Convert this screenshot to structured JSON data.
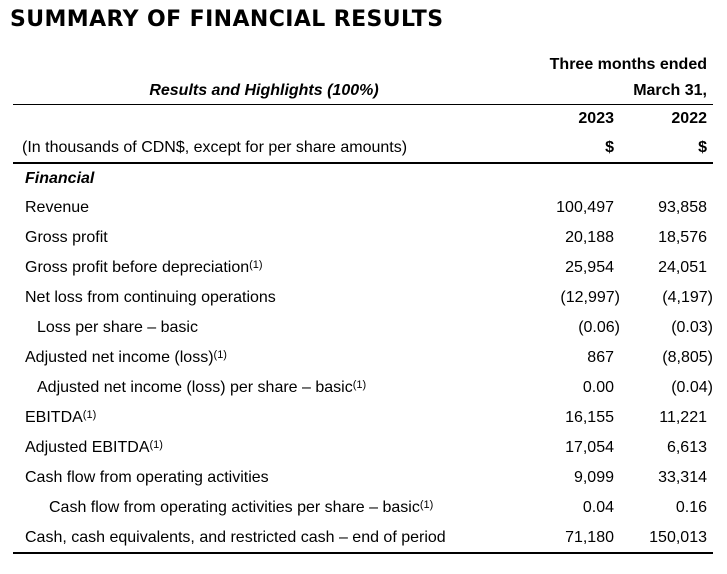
{
  "title": "SUMMARY OF FINANCIAL RESULTS",
  "header": {
    "period_line1": "Three months ended",
    "period_line2": "March 31,",
    "left_title": "Results and Highlights (100%)",
    "col_2023": "2023",
    "col_2022": "2022",
    "units_note": "(In thousands of CDN$, except for per share amounts)",
    "currency_symbol_2023": "$",
    "currency_symbol_2022": "$"
  },
  "table": {
    "rows": [
      {
        "type": "section",
        "label": "Financial",
        "indent": 0,
        "v2023": "",
        "v2022": ""
      },
      {
        "type": "data",
        "label": "Revenue",
        "indent": 0,
        "v2023": "100,497",
        "v2022": "93,858"
      },
      {
        "type": "data",
        "label": "Gross profit",
        "indent": 0,
        "v2023": "20,188",
        "v2022": "18,576"
      },
      {
        "type": "data",
        "label": "Gross profit before depreciation",
        "footnote": "(1)",
        "indent": 0,
        "v2023": "25,954",
        "v2022": "24,051"
      },
      {
        "type": "data",
        "label": "Net loss from continuing operations",
        "indent": 0,
        "v2023": "(12,997)",
        "v2022": "(4,197)"
      },
      {
        "type": "data",
        "label": "Loss per share – basic",
        "indent": 1,
        "v2023": "(0.06)",
        "v2022": "(0.03)"
      },
      {
        "type": "data",
        "label": "Adjusted net income (loss)",
        "footnote": "(1)",
        "indent": 0,
        "v2023": "867",
        "v2022": "(8,805)"
      },
      {
        "type": "data",
        "label": "Adjusted net income (loss) per share – basic",
        "footnote": "(1)",
        "indent": 1,
        "v2023": "0.00",
        "v2022": "(0.04)"
      },
      {
        "type": "data",
        "label": "EBITDA",
        "footnote": "(1)",
        "indent": 0,
        "v2023": "16,155",
        "v2022": "11,221"
      },
      {
        "type": "data",
        "label": "Adjusted EBITDA",
        "footnote": "(1)",
        "indent": 0,
        "v2023": "17,054",
        "v2022": "6,613"
      },
      {
        "type": "data",
        "label": "Cash flow from operating activities",
        "indent": 0,
        "v2023": "9,099",
        "v2022": "33,314"
      },
      {
        "type": "data",
        "label": "Cash flow from operating activities per share – basic",
        "footnote": "(1)",
        "indent": 2,
        "v2023": "0.04",
        "v2022": "0.16"
      },
      {
        "type": "data",
        "label": "Cash, cash equivalents, and restricted cash – end of period",
        "indent": 0,
        "v2023": "71,180",
        "v2022": "150,013"
      }
    ]
  },
  "colors": {
    "text": "#000000",
    "background": "#ffffff",
    "rule": "#000000"
  }
}
